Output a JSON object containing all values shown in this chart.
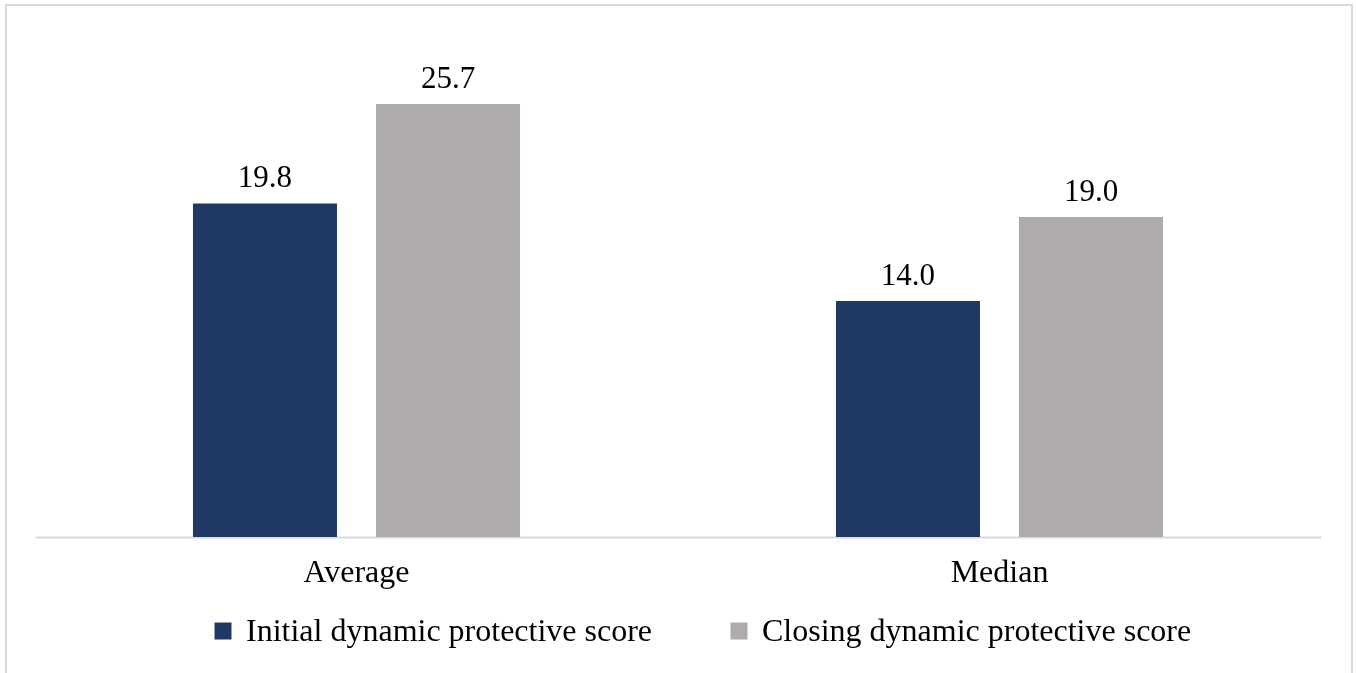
{
  "chart_data": {
    "type": "bar",
    "categories": [
      "Average",
      "Median"
    ],
    "series": [
      {
        "name": "Initial dynamic protective score",
        "color": "#203864",
        "values": [
          19.8,
          14.0
        ],
        "value_labels": [
          "19.8",
          "14.0"
        ]
      },
      {
        "name": "Closing dynamic protective score",
        "color": "#afabab",
        "values": [
          25.7,
          19.0
        ],
        "value_labels": [
          "25.7",
          "19.0"
        ]
      }
    ],
    "legend": "bottom",
    "tick_labels": "x"
  }
}
